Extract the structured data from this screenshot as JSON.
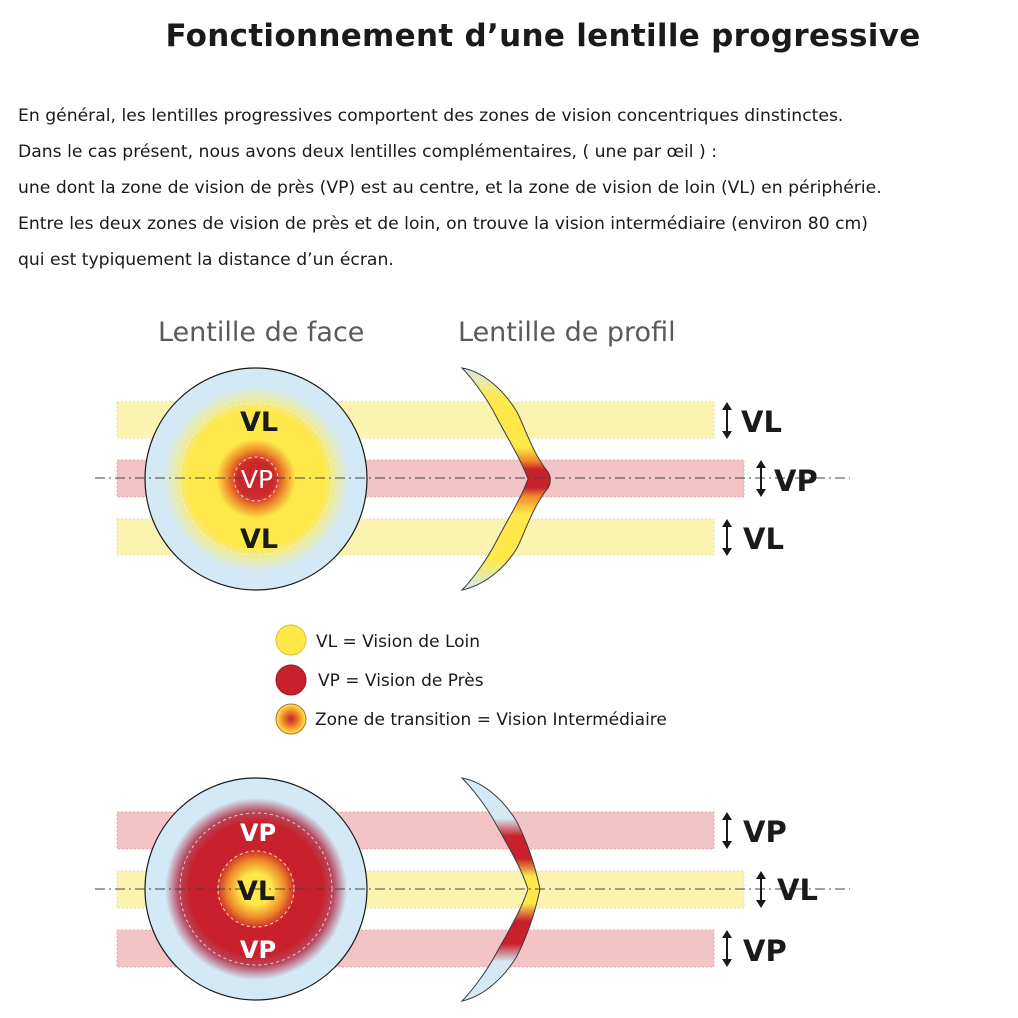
{
  "title": "Fonctionnement d’une lentille progressive",
  "intro_lines": [
    "En général, les lentilles progressives comportent des zones de vision concentriques dinstinctes.",
    "Dans le cas présent, nous avons deux lentilles complémentaires, ( une par œil ) :",
    "une dont la zone de vision de près (VP) est au centre, et la zone de vision de loin (VL) en périphérie.",
    "Entre les deux zones de vision de près et de loin, on trouve la vision intermédiaire (environ 80 cm)",
    "qui est typiquement la distance d’un écran."
  ],
  "column_headers": {
    "front": "Lentille de face",
    "profile": "Lentille de profil"
  },
  "lens_top": {
    "front_labels": {
      "top": "VL",
      "center": "VP",
      "bottom": "VL"
    },
    "side_labels": {
      "top": "VL",
      "center": "VP",
      "bottom": "VL"
    }
  },
  "legend": [
    {
      "text": "VL = Vision de Loin",
      "color": "#ffe94a"
    },
    {
      "text": "VP = Vision de Près",
      "color": "#c8202c"
    },
    {
      "text": "Zone de transition = Vision Intermédiaire",
      "color": "gradient"
    }
  ],
  "lens_bottom": {
    "front_labels": {
      "top": "VP",
      "center": "VL",
      "bottom": "VP"
    },
    "side_labels": {
      "top": "VP",
      "center": "VL",
      "bottom": "VP"
    }
  },
  "colors": {
    "vl_yellow": "#ffe94a",
    "vp_red": "#c8202c",
    "vl_band": "#fbf4b0",
    "vp_band": "#f2c4c6",
    "lens_blue": "#d4e9f6"
  }
}
